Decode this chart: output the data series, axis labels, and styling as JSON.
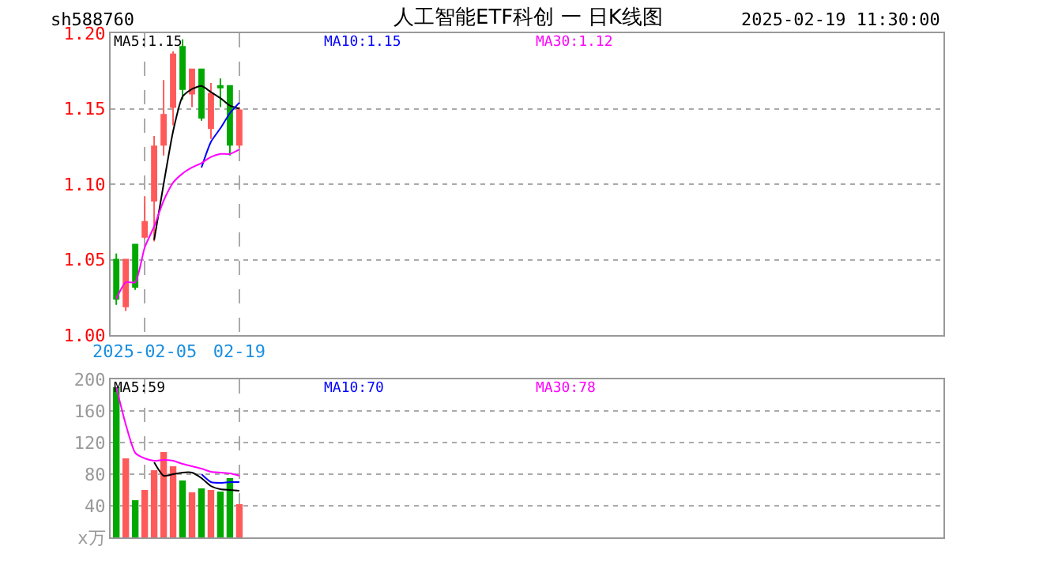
{
  "chart_data": [
    {
      "type": "candlestick",
      "annotations": [
        "sh588760",
        "人工智能ETF科创 一 日K线图",
        "2025-02-19 11:30:00"
      ],
      "categories": [
        null,
        null,
        null,
        "2025-02-05",
        null,
        null,
        null,
        null,
        null,
        null,
        null,
        null,
        null,
        "02-19"
      ],
      "ohlc": [
        [
          1.05,
          1.054,
          1.02,
          1.024
        ],
        [
          1.019,
          1.05,
          1.016,
          1.05
        ],
        [
          1.06,
          1.06,
          1.03,
          1.032
        ],
        [
          1.065,
          1.092,
          1.064,
          1.075
        ],
        [
          1.089,
          1.132,
          1.062,
          1.125
        ],
        [
          1.126,
          1.169,
          1.119,
          1.146
        ],
        [
          1.151,
          1.188,
          1.139,
          1.186
        ],
        [
          1.191,
          1.196,
          1.156,
          1.163
        ],
        [
          1.16,
          1.176,
          1.151,
          1.176
        ],
        [
          1.176,
          1.176,
          1.142,
          1.144
        ],
        [
          1.137,
          1.167,
          1.13,
          1.16
        ],
        [
          1.165,
          1.17,
          1.151,
          1.164
        ],
        [
          1.165,
          1.165,
          1.119,
          1.126
        ],
        [
          1.126,
          1.151,
          1.124,
          1.149
        ]
      ],
      "colors": [
        "#00a800",
        "#ff5a5a",
        "#00a800",
        "#ff5a5a",
        "#ff5a5a",
        "#ff5a5a",
        "#ff5a5a",
        "#00a800",
        "#ff5a5a",
        "#00a800",
        "#ff5a5a",
        "#00a800",
        "#00a800",
        "#ff5a5a"
      ],
      "series": [
        {
          "type": "line",
          "name": "MA5:1.15",
          "color": "#000000",
          "values": [
            null,
            null,
            null,
            null,
            1.063,
            1.1,
            1.135,
            1.158,
            1.163,
            1.165,
            1.161,
            1.157,
            1.152,
            1.15
          ]
        },
        {
          "type": "line",
          "name": "MA10:1.15",
          "color": "#0000ff",
          "values": [
            null,
            null,
            null,
            null,
            null,
            null,
            null,
            null,
            null,
            1.111,
            1.128,
            1.137,
            1.147,
            1.154
          ]
        },
        {
          "type": "line",
          "name": "MA30:1.12",
          "color": "#ff00ff",
          "values": [
            1.024,
            1.035,
            1.035,
            1.058,
            1.072,
            1.089,
            1.101,
            1.107,
            1.111,
            1.114,
            1.118,
            1.12,
            1.12,
            1.123
          ]
        }
      ],
      "ylim": [
        1.0,
        1.2
      ],
      "yticks": [
        {
          "value": 1.0,
          "label": "1.00"
        },
        {
          "value": 1.05,
          "label": "1.05"
        },
        {
          "value": 1.1,
          "label": "1.10"
        },
        {
          "value": 1.15,
          "label": "1.15"
        },
        {
          "value": 1.2,
          "label": "1.20"
        }
      ],
      "grid": true
    },
    {
      "type": "bar",
      "categories": [
        null,
        null,
        null,
        null,
        null,
        null,
        null,
        null,
        null,
        null,
        null,
        null,
        null,
        null
      ],
      "series": [
        {
          "type": "bar",
          "colors": [
            "#00a800",
            "#ff5a5a",
            "#00a800",
            "#ff5a5a",
            "#ff5a5a",
            "#ff5a5a",
            "#ff5a5a",
            "#00a800",
            "#ff5a5a",
            "#00a800",
            "#ff5a5a",
            "#00a800",
            "#00a800",
            "#ff5a5a"
          ],
          "values": [
            190,
            100,
            47,
            60,
            85,
            108,
            90,
            72,
            57,
            62,
            60,
            58,
            75,
            42
          ]
        },
        {
          "type": "line",
          "name": "MA5:59",
          "color": "#000000",
          "values": [
            null,
            null,
            null,
            null,
            95,
            78,
            80,
            82,
            82,
            75,
            65,
            61,
            60,
            59
          ]
        },
        {
          "type": "line",
          "name": "MA10:70",
          "color": "#0000ff",
          "values": [
            null,
            null,
            null,
            null,
            null,
            null,
            null,
            null,
            null,
            80,
            70,
            69,
            70,
            70
          ]
        },
        {
          "type": "line",
          "name": "MA30:78",
          "color": "#ff00ff",
          "values": [
            190,
            143,
            107,
            100,
            97,
            98,
            97,
            93,
            90,
            87,
            83,
            82,
            81,
            78
          ]
        }
      ],
      "ylim": [
        0,
        200
      ],
      "yticks": [
        {
          "value": 0,
          "label": "x万"
        },
        40,
        80,
        120,
        160,
        200
      ],
      "grid": true,
      "tick_labels": "y"
    }
  ]
}
